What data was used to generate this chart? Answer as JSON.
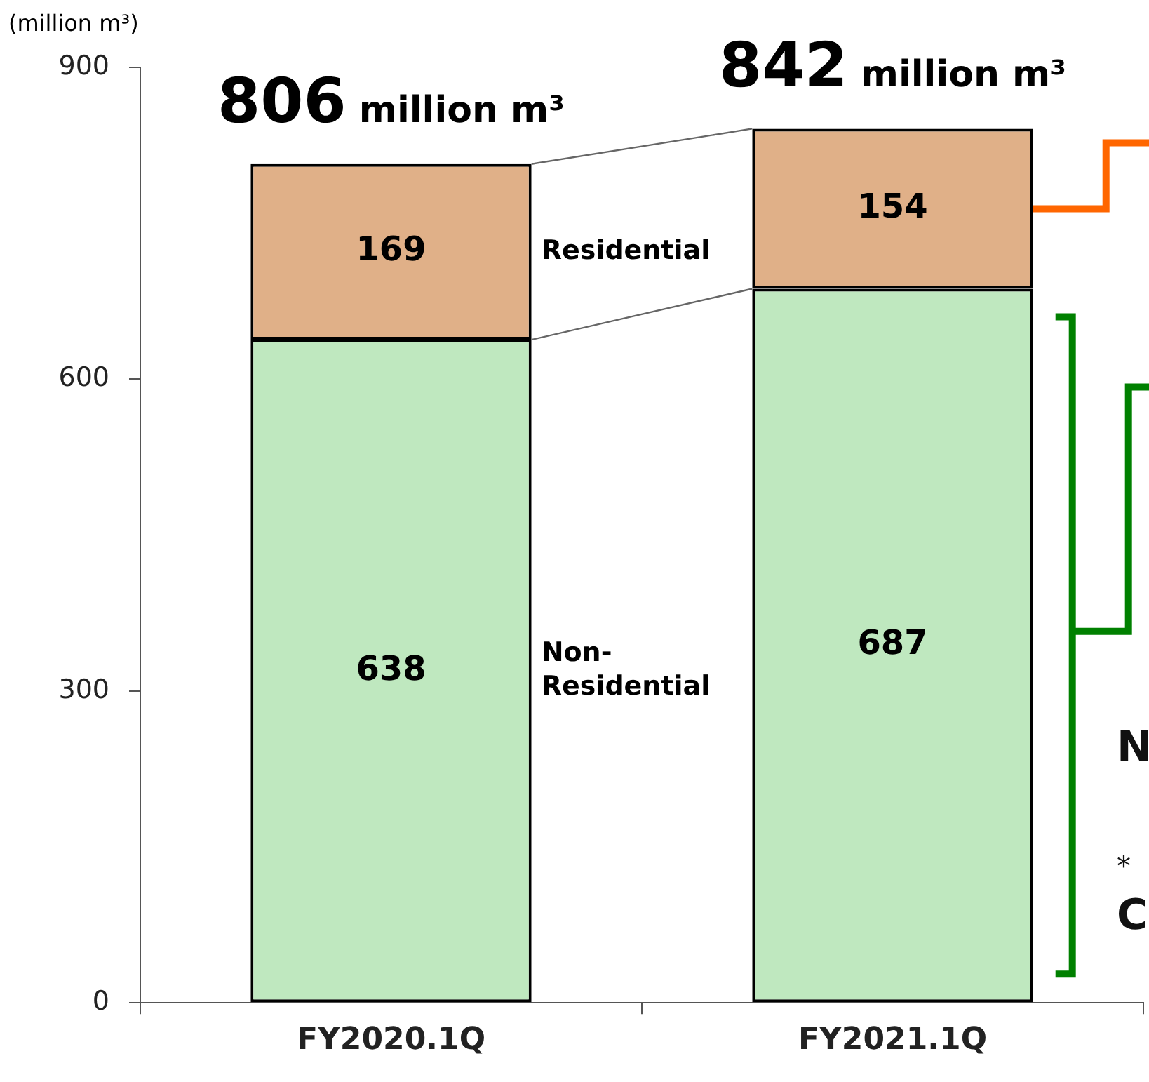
{
  "chart_data": {
    "type": "bar",
    "stacked": true,
    "ylabel": "(million m³)",
    "categories": [
      "FY2020.1Q",
      "FY2021.1Q"
    ],
    "series": [
      {
        "name": "Non-Residential",
        "color": "#bfe8bf",
        "values": [
          638,
          687
        ]
      },
      {
        "name": "Residential",
        "color": "#e0b088",
        "values": [
          169,
          154
        ]
      }
    ],
    "totals": [
      "806 million m³",
      "842 million m³"
    ],
    "ylim": [
      0,
      900
    ],
    "yticks": [
      0,
      300,
      600,
      900
    ],
    "grid": false,
    "legend": false,
    "data_labels": true,
    "annotations": [
      "N",
      "*",
      "C"
    ]
  }
}
